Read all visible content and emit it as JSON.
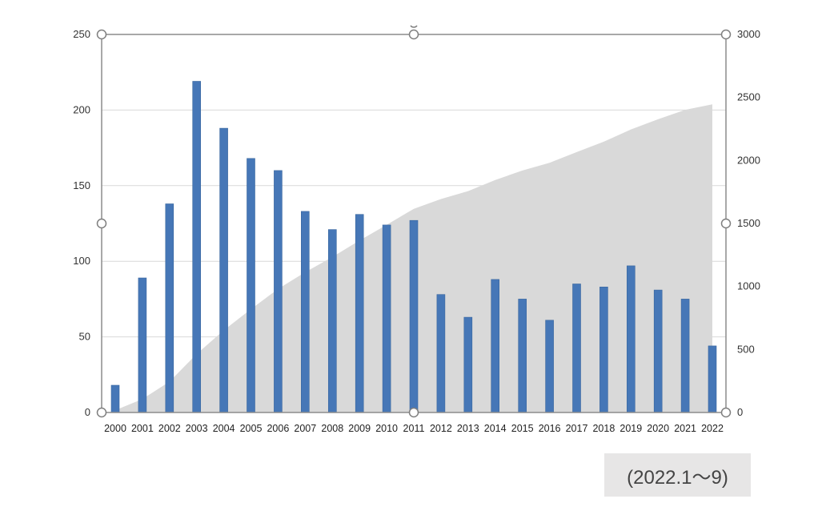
{
  "chart_data": {
    "type": "bar",
    "categories": [
      "2000",
      "2001",
      "2002",
      "2003",
      "2004",
      "2005",
      "2006",
      "2007",
      "2008",
      "2009",
      "2010",
      "2011",
      "2012",
      "2013",
      "2014",
      "2015",
      "2016",
      "2017",
      "2018",
      "2019",
      "2020",
      "2021",
      "2022"
    ],
    "series": [
      {
        "type": "bar",
        "axis": "left",
        "color": "#4677b7",
        "values": [
          18,
          89,
          138,
          219,
          188,
          168,
          160,
          133,
          121,
          131,
          124,
          127,
          78,
          63,
          88,
          75,
          61,
          85,
          83,
          97,
          81,
          75,
          44
        ]
      },
      {
        "type": "area",
        "axis": "right",
        "color": "#d9d9d9",
        "values": [
          18,
          107,
          245,
          464,
          652,
          820,
          980,
          1113,
          1234,
          1365,
          1489,
          1616,
          1694,
          1757,
          1845,
          1920,
          1981,
          2066,
          2149,
          2246,
          2327,
          2402,
          2446
        ]
      }
    ],
    "ylim_left": [
      0,
      250
    ],
    "yticks_left": [
      0,
      50,
      100,
      150,
      200,
      250
    ],
    "ylim_right": [
      0,
      3000
    ],
    "yticks_right": [
      0,
      500,
      1000,
      1500,
      2000,
      2500,
      3000
    ],
    "grid": true,
    "legend": "none",
    "selected": true
  },
  "note": "(2022.1～9)"
}
